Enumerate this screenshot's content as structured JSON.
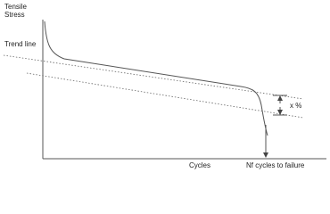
{
  "axis": {
    "y_label_lines": [
      "Tensile",
      "Stress"
    ],
    "x_label": "Cycles"
  },
  "annotations": {
    "trend_line": "Trend line",
    "offset": "x %",
    "failure": "Nf cycles to failure"
  }
}
